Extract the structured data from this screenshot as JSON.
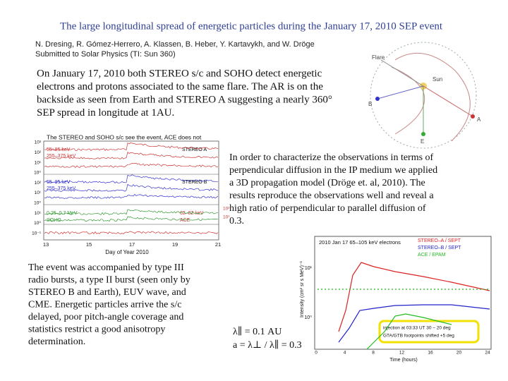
{
  "title": "The large longitudinal spread of energetic particles during the January 17, 2010 SEP event",
  "authors": "N. Dresing, R. Gómez-Herrero, A. Klassen, B. Heber, Y. Kartavykh, and W. Dröge",
  "submitted": "Submitted to Solar Physics (TI: Sun 360)",
  "paragraph_1": [
    "On January 17, 2010 both STEREO s/c and SOHO detect energetic",
    "electrons and protons associated to the same flare. The AR is on the",
    "backside as seen from Earth and STEREO A suggesting a nearly 360°",
    "SEP spread in longitude at 1AU."
  ],
  "paragraph_2": [
    "In order to characterize the observations in terms of",
    "perpendicular diffusion in the IP medium we applied",
    "a 3D propagation model (Dröge et. al, 2010). The",
    "results reproduce the observations well and reveal a",
    "high ratio of perpendicular to parallel diffusion of",
    "0.3."
  ],
  "paragraph_3": [
    "The event was accompanied by type III",
    "radio bursts, a type II burst (seen only by",
    "STEREO B and Earth), EUV wave, and",
    "CME. Energetic particles arrive the s/c",
    "delayed, poor pitch-angle coverage and",
    "statistics restrict a good anisotropy",
    "determination."
  ],
  "formulas": [
    "λ∥ = 0.1 AU",
    "a = λ⊥ / λ∥ = 0.3"
  ],
  "orbit_figure": {
    "labels": [
      "Flare",
      "Sun",
      "A",
      "B",
      "E"
    ]
  },
  "overview_figure": {
    "caption": "The STEREO and SOHO s/c see the event, ACE does not",
    "panel_labels": [
      "55–85 keV",
      "255–375 keV",
      "STEREO A",
      "55–85 keV",
      "255–375 keV",
      "STEREO B",
      "0.25–0.7 MeV",
      "SOHO",
      "62–82 keV",
      "ACE"
    ],
    "left_ticks": [
      "10³",
      "10²",
      "10¹",
      "10⁰",
      "10²",
      "10¹",
      "10⁰",
      "10¹",
      "10⁰",
      "10⁻¹"
    ],
    "right_ticks": [
      "10²",
      "10¹"
    ],
    "x_ticks": [
      "13",
      "15",
      "17",
      "19",
      "21"
    ],
    "x_label": "Day of Year 2010"
  },
  "model_figure": {
    "title": "2010 Jan 17   65–105 keV electrons",
    "legend": [
      "STEREO–A / SEPT",
      "STEREO–B / SEPT",
      "ACE / EPAM"
    ],
    "y_label": "Intensity (cm² sr s MeV)⁻¹",
    "y_ticks": [
      "10¹",
      "10⁰"
    ],
    "x_ticks": [
      "0",
      "4",
      "8",
      "12",
      "16",
      "20",
      "24"
    ],
    "x_label": "Time (hours)",
    "annotation": [
      "injection at 03:33 UT   30 – 20 deg",
      "GTA/GTB footpoints shifted +5 deg"
    ]
  }
}
